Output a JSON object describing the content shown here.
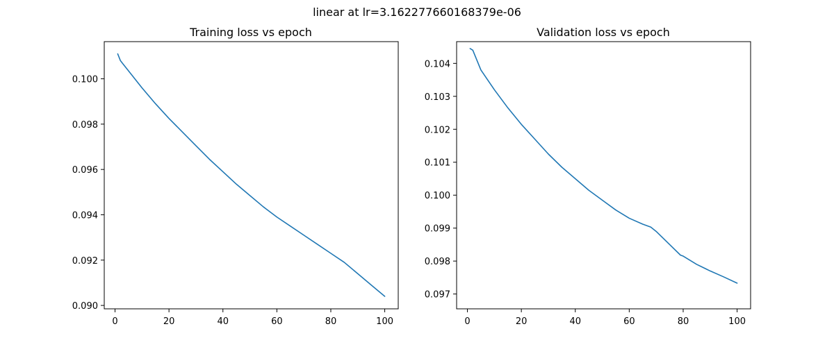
{
  "figure": {
    "suptitle": "linear at lr=3.162277660168379e-06"
  },
  "chart_data": [
    {
      "type": "line",
      "title": "Training loss vs epoch",
      "xlabel": "",
      "ylabel": "",
      "xlim": [
        -4,
        105
      ],
      "ylim": [
        0.08985,
        0.10164
      ],
      "xticks": [
        0,
        20,
        40,
        60,
        80,
        100
      ],
      "yticks": [
        0.09,
        0.092,
        0.094,
        0.096,
        0.098,
        0.1
      ],
      "yticks_labels": [
        "0.090",
        "0.092",
        "0.094",
        "0.096",
        "0.098",
        "0.100"
      ],
      "xticks_labels": [
        "0",
        "20",
        "40",
        "60",
        "80",
        "100"
      ],
      "grid": false,
      "series": [
        {
          "color": "#1f77b4",
          "x": [
            1,
            2,
            3,
            5,
            10,
            15,
            20,
            25,
            30,
            35,
            40,
            45,
            50,
            55,
            60,
            65,
            70,
            75,
            80,
            85,
            90,
            95,
            100
          ],
          "y": [
            0.1011,
            0.1008,
            0.10065,
            0.10035,
            0.0996,
            0.0989,
            0.09825,
            0.09765,
            0.09705,
            0.09645,
            0.0959,
            0.09535,
            0.09485,
            0.09435,
            0.0939,
            0.0935,
            0.0931,
            0.0927,
            0.0923,
            0.0919,
            0.0914,
            0.0909,
            0.0904
          ]
        }
      ]
    },
    {
      "type": "line",
      "title": "Validation loss vs epoch",
      "xlabel": "",
      "ylabel": "",
      "xlim": [
        -4,
        105
      ],
      "ylim": [
        0.09655,
        0.10466
      ],
      "xticks": [
        0,
        20,
        40,
        60,
        80,
        100
      ],
      "yticks": [
        0.097,
        0.098,
        0.099,
        0.1,
        0.101,
        0.102,
        0.103,
        0.104
      ],
      "yticks_labels": [
        "0.097",
        "0.098",
        "0.099",
        "0.100",
        "0.101",
        "0.102",
        "0.103",
        "0.104"
      ],
      "xticks_labels": [
        "0",
        "20",
        "40",
        "60",
        "80",
        "100"
      ],
      "grid": false,
      "series": [
        {
          "color": "#1f77b4",
          "x": [
            1,
            2,
            3,
            5,
            10,
            15,
            20,
            25,
            30,
            35,
            40,
            45,
            50,
            55,
            60,
            65,
            68,
            70,
            75,
            79,
            80,
            85,
            90,
            95,
            100
          ],
          "y": [
            0.10445,
            0.1044,
            0.1042,
            0.1038,
            0.1032,
            0.10265,
            0.10215,
            0.1017,
            0.10125,
            0.10085,
            0.1005,
            0.10015,
            0.09985,
            0.09955,
            0.0993,
            0.09912,
            0.09903,
            0.0989,
            0.0985,
            0.09818,
            0.09815,
            0.0979,
            0.0977,
            0.09752,
            0.09733
          ]
        }
      ]
    }
  ]
}
